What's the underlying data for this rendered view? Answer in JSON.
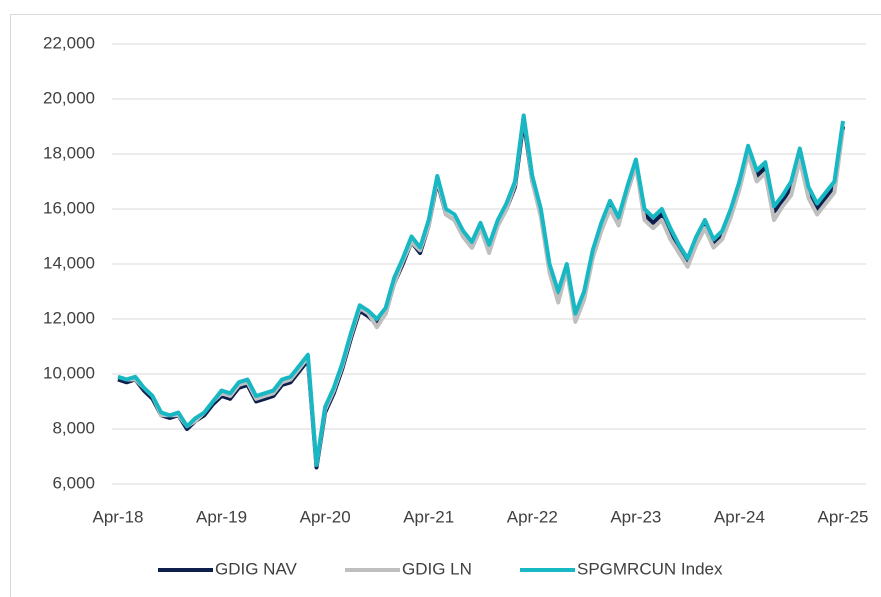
{
  "chart_data": {
    "type": "line",
    "categories": [
      "Apr-18",
      null,
      null,
      null,
      null,
      null,
      null,
      null,
      null,
      null,
      null,
      null,
      "Apr-19",
      null,
      null,
      null,
      null,
      null,
      null,
      null,
      null,
      null,
      null,
      null,
      "Apr-20",
      null,
      null,
      null,
      null,
      null,
      null,
      null,
      null,
      null,
      null,
      null,
      "Apr-21",
      null,
      null,
      null,
      null,
      null,
      null,
      null,
      null,
      null,
      null,
      null,
      "Apr-22",
      null,
      null,
      null,
      null,
      null,
      null,
      null,
      null,
      null,
      null,
      null,
      "Apr-23",
      null,
      null,
      null,
      null,
      null,
      null,
      null,
      null,
      null,
      null,
      null,
      "Apr-24",
      null,
      null,
      null,
      null,
      null,
      null,
      null,
      null,
      null,
      null,
      null,
      "Apr-25"
    ],
    "series": [
      {
        "name": "GDIG NAV",
        "color": "#0e1f4d",
        "values": [
          9800,
          9700,
          9800,
          9400,
          9100,
          8500,
          8400,
          8500,
          8000,
          8300,
          8500,
          8900,
          9200,
          9100,
          9500,
          9600,
          9000,
          9100,
          9200,
          9600,
          9700,
          10100,
          10500,
          6600,
          8600,
          9300,
          10200,
          11300,
          12300,
          12100,
          11800,
          12200,
          13300,
          14000,
          14800,
          14400,
          15400,
          17000,
          15800,
          15600,
          15000,
          14600,
          15300,
          14500,
          15400,
          16000,
          16800,
          19200,
          17000,
          15800,
          13800,
          12800,
          13800,
          12000,
          12800,
          14300,
          15300,
          16100,
          15500,
          16600,
          17600,
          15800,
          15500,
          15800,
          15100,
          14500,
          14000,
          14800,
          15400,
          14700,
          15000,
          15800,
          16800,
          18100,
          17200,
          17500,
          15900,
          16300,
          16800,
          18000,
          16600,
          16000,
          16400,
          16800,
          19000
        ]
      },
      {
        "name": "GDIG LN",
        "color": "#bfbfbf",
        "values": [
          9900,
          9800,
          9800,
          9500,
          9200,
          8500,
          8500,
          8500,
          8100,
          8300,
          8600,
          9000,
          9300,
          9200,
          9600,
          9700,
          9100,
          9200,
          9300,
          9700,
          9800,
          10200,
          10600,
          6700,
          8700,
          9400,
          10300,
          11400,
          12400,
          12200,
          11700,
          12200,
          13300,
          14100,
          14800,
          14500,
          15400,
          17100,
          15800,
          15600,
          15000,
          14600,
          15300,
          14400,
          15400,
          16000,
          16900,
          19400,
          17000,
          15700,
          13700,
          12600,
          13800,
          11900,
          12700,
          14200,
          15200,
          16000,
          15400,
          16600,
          17600,
          15600,
          15300,
          15600,
          14900,
          14400,
          13900,
          14700,
          15300,
          14600,
          14900,
          15700,
          16700,
          18000,
          17000,
          17300,
          15600,
          16100,
          16500,
          17800,
          16400,
          15800,
          16200,
          16600,
          18900
        ]
      },
      {
        "name": "SPGMRCUN Index",
        "color": "#17b8c4",
        "values": [
          9900,
          9800,
          9900,
          9500,
          9200,
          8600,
          8500,
          8600,
          8100,
          8400,
          8600,
          9000,
          9400,
          9300,
          9700,
          9800,
          9200,
          9300,
          9400,
          9800,
          9900,
          10300,
          10700,
          6700,
          8800,
          9500,
          10400,
          11500,
          12500,
          12300,
          12000,
          12400,
          13500,
          14200,
          15000,
          14600,
          15600,
          17200,
          16000,
          15800,
          15200,
          14800,
          15500,
          14700,
          15600,
          16200,
          17000,
          19400,
          17200,
          16000,
          14000,
          13000,
          14000,
          12200,
          13000,
          14500,
          15500,
          16300,
          15700,
          16800,
          17800,
          16000,
          15700,
          16000,
          15300,
          14700,
          14200,
          15000,
          15600,
          14900,
          15200,
          16000,
          17000,
          18300,
          17400,
          17700,
          16100,
          16500,
          17000,
          18200,
          16800,
          16200,
          16600,
          17000,
          19200
        ]
      }
    ],
    "ylim": [
      6000,
      22000
    ],
    "yticks": [
      {
        "value": 6000,
        "label": "6,000"
      },
      {
        "value": 8000,
        "label": "8,000"
      },
      {
        "value": 10000,
        "label": "10,000"
      },
      {
        "value": 12000,
        "label": "12,000"
      },
      {
        "value": 14000,
        "label": "14,000"
      },
      {
        "value": 16000,
        "label": "16,000"
      },
      {
        "value": 18000,
        "label": "18,000"
      },
      {
        "value": 20000,
        "label": "20,000"
      },
      {
        "value": 22000,
        "label": "22,000"
      }
    ],
    "grid": true
  }
}
